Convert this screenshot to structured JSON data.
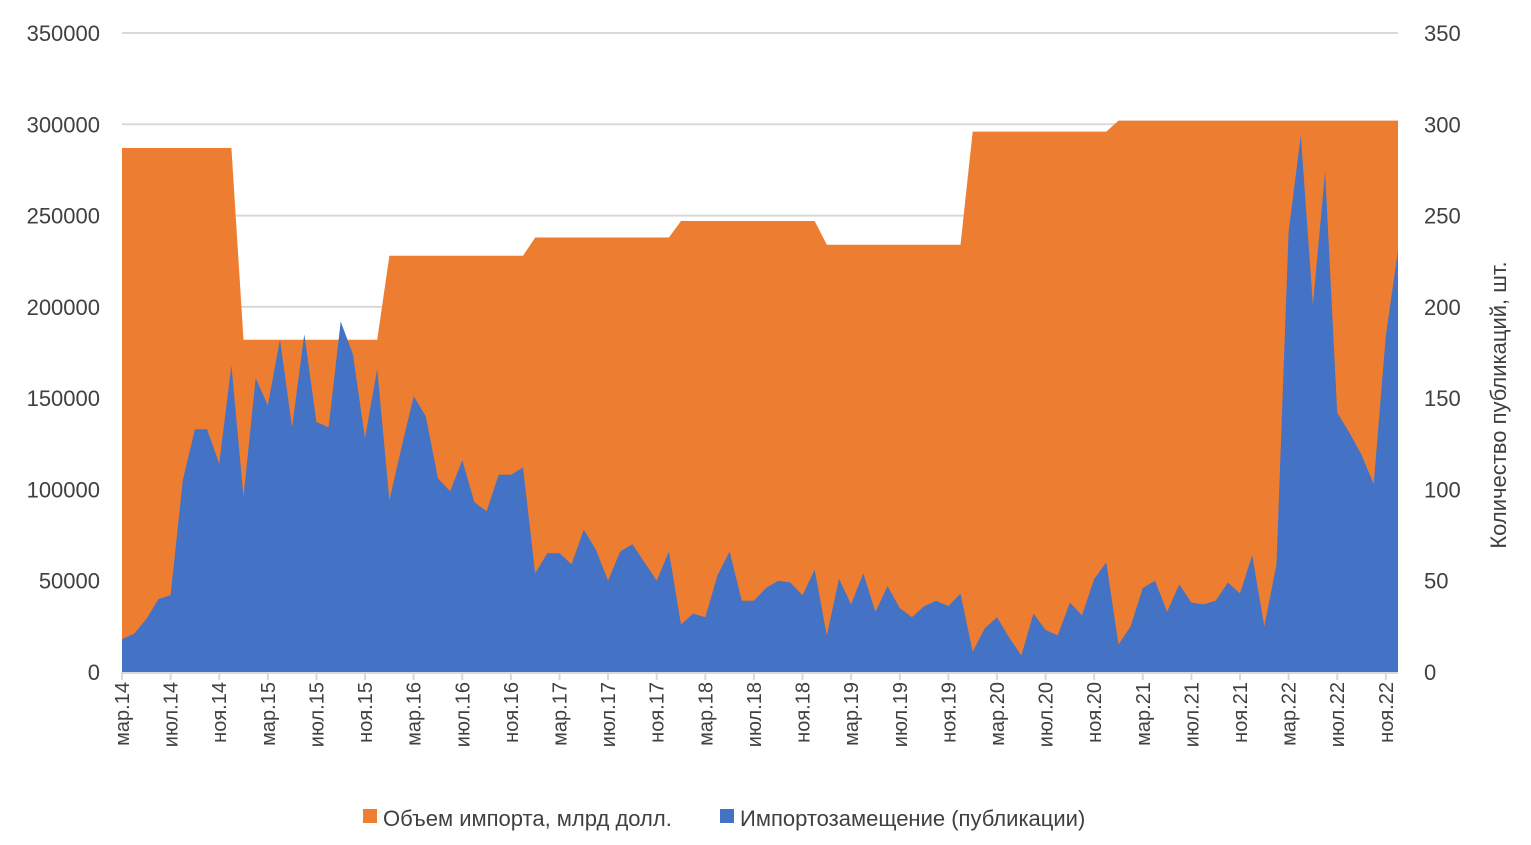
{
  "chart_data": {
    "type": "area",
    "title": "",
    "ylabel_left": "",
    "ylabel_right": "Количество публикаций, шт.",
    "ylim_left": [
      0,
      350000
    ],
    "ylim_right": [
      0,
      350
    ],
    "yticks_left": [
      "0",
      "50000",
      "100000",
      "150000",
      "200000",
      "250000",
      "300000",
      "350000"
    ],
    "yticks_right": [
      "0",
      "50",
      "100",
      "150",
      "200",
      "250",
      "300",
      "350"
    ],
    "grid": true,
    "legend_position": "bottom",
    "x_start": "мар.14",
    "x_end": "дек.22",
    "x_step": "month",
    "xtick_labels": [
      "мар.14",
      "июл.14",
      "ноя.14",
      "мар.15",
      "июл.15",
      "ноя.15",
      "мар.16",
      "июл.16",
      "ноя.16",
      "мар.17",
      "июл.17",
      "ноя.17",
      "мар.18",
      "июл.18",
      "ноя.18",
      "мар.19",
      "июл.19",
      "ноя.19",
      "мар.20",
      "июл.20",
      "ноя.20",
      "мар.21",
      "июл.21",
      "ноя.21",
      "мар.22",
      "июл.22",
      "ноя.22"
    ],
    "series": [
      {
        "name": "Объем импорта, млрд долл.",
        "axis": "left",
        "color": "#ED7D31",
        "segments": [
          {
            "from": "мар.14",
            "to": "дек.14",
            "value": 287000
          },
          {
            "from": "янв.15",
            "to": "дек.16",
            "value": 182000
          },
          {
            "from": "янв.17",
            "to": "дек.17",
            "value": 228000
          },
          {
            "from": "янв.18",
            "to": "дек.18",
            "value": 238000
          },
          {
            "from": "янв.19",
            "to": "дек.19",
            "value": 247000
          },
          {
            "from": "янв.20",
            "to": "дек.20",
            "value": 234000
          },
          {
            "from": "янв.21",
            "to": "дек.21",
            "value": 296000
          },
          {
            "from": "янв.22",
            "to": "дек.22",
            "value": 302000
          }
        ]
      },
      {
        "name": "Импортозамещение (публикации)",
        "axis": "right",
        "color": "#4472C4",
        "values": [
          18,
          21,
          29,
          40,
          42,
          105,
          133,
          133,
          114,
          168,
          96,
          161,
          146,
          182,
          134,
          185,
          137,
          134,
          192,
          174,
          128,
          166,
          94,
          123,
          151,
          140,
          106,
          99,
          116,
          93,
          88,
          108,
          108,
          112,
          54,
          65,
          65,
          59,
          78,
          67,
          50,
          66,
          70,
          60,
          50,
          66,
          26,
          32,
          30,
          53,
          66,
          39,
          39,
          46,
          50,
          49,
          42,
          56,
          20,
          51,
          37,
          54,
          33,
          47,
          35,
          30,
          36,
          39,
          36,
          43,
          11,
          24,
          30,
          19,
          9,
          32,
          23,
          20,
          38,
          31,
          51,
          60,
          15,
          25,
          46,
          50,
          33,
          48,
          38,
          37,
          39,
          49,
          43,
          64,
          25,
          59,
          241,
          294,
          201,
          274,
          142,
          131,
          119,
          103,
          184,
          231
        ]
      }
    ]
  }
}
